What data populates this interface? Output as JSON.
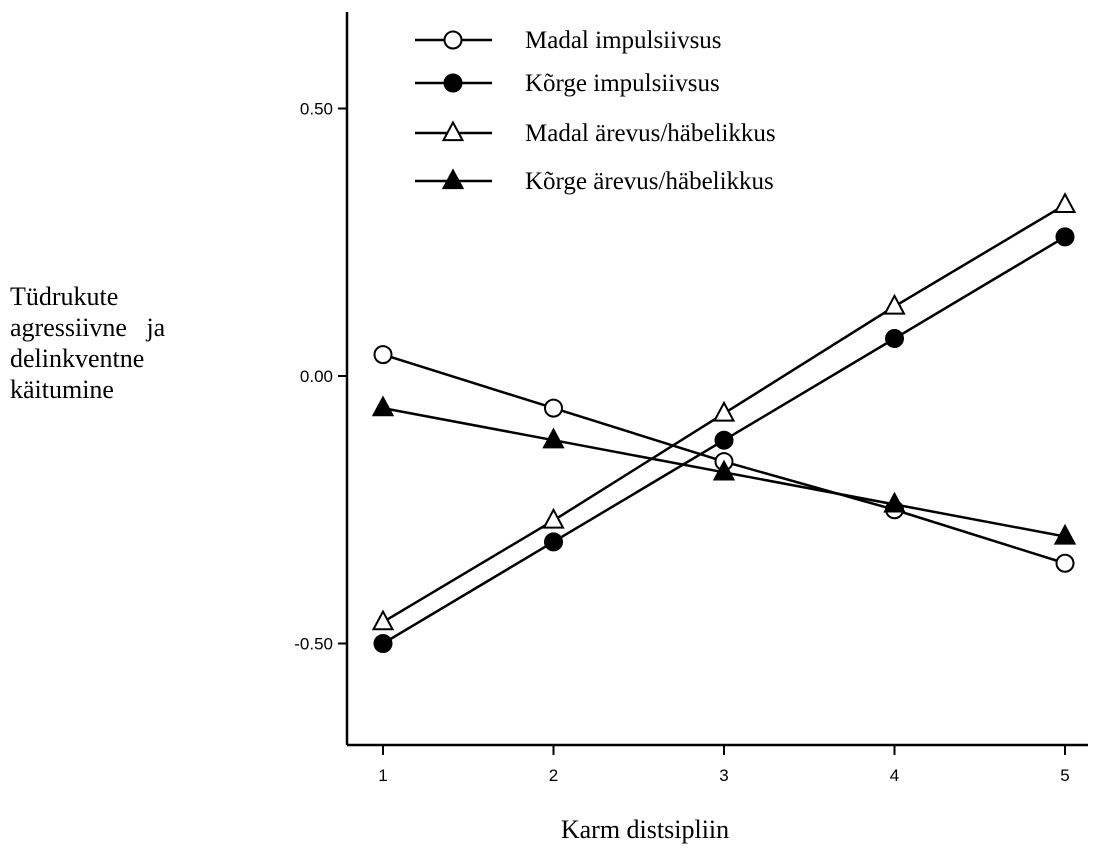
{
  "chart_data": {
    "type": "line",
    "title": "",
    "xlabel": "Karm distsipliin",
    "ylabel_lines": [
      "Tüdrukute",
      "agressiivne   ja",
      "delinkventne",
      "käitumine"
    ],
    "x": [
      1,
      2,
      3,
      4,
      5
    ],
    "x_tick_labels": [
      "1",
      "2",
      "3",
      "4",
      "5"
    ],
    "y_ticks": [
      0.5,
      0.0,
      -0.5
    ],
    "y_tick_labels": [
      "0.50",
      "0.00",
      "-0.50"
    ],
    "xlim": [
      0.8,
      5.2
    ],
    "ylim": [
      -0.69,
      0.68
    ],
    "grid": false,
    "legend_position": "top",
    "series": [
      {
        "name": "Madal impulsiivsus",
        "marker": "circle-open",
        "values": [
          0.04,
          -0.06,
          -0.16,
          -0.25,
          -0.35
        ]
      },
      {
        "name": "Kõrge impulsiivsus",
        "marker": "circle-filled",
        "values": [
          -0.5,
          -0.31,
          -0.12,
          0.07,
          0.26
        ]
      },
      {
        "name": "Madal ärevus/häbelikkus",
        "marker": "triangle-open",
        "values": [
          -0.46,
          -0.27,
          -0.07,
          0.13,
          0.32
        ]
      },
      {
        "name": "Kõrge ärevus/häbelikkus",
        "marker": "triangle-filled",
        "values": [
          -0.06,
          -0.12,
          -0.18,
          -0.24,
          -0.3
        ]
      }
    ]
  }
}
